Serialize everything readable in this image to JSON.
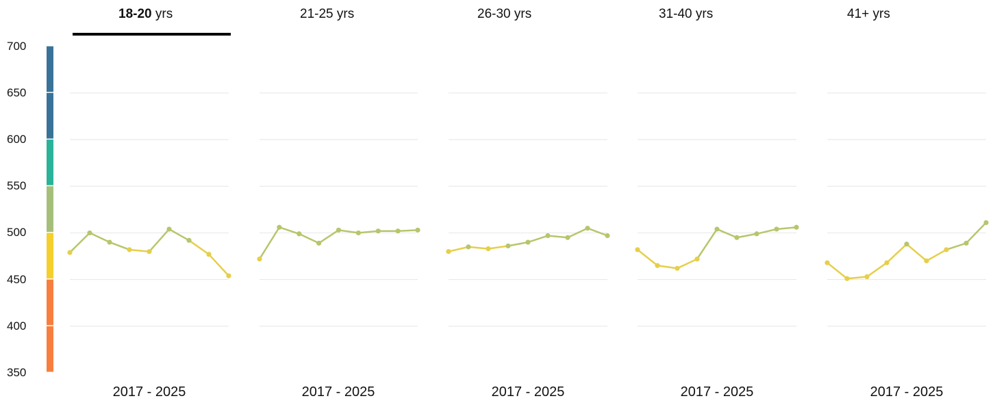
{
  "tabs": [
    {
      "label": "18-20",
      "unit": "yrs",
      "active": true
    },
    {
      "label": "21-25",
      "unit": "yrs",
      "active": false
    },
    {
      "label": "26-30",
      "unit": "yrs",
      "active": false
    },
    {
      "label": "31-40",
      "unit": "yrs",
      "active": false
    },
    {
      "label": "41+",
      "unit": "yrs",
      "active": false
    }
  ],
  "period_label": "2017 - 2025",
  "chart_data": {
    "type": "line",
    "ylim": [
      350,
      710
    ],
    "yticks": [
      700,
      650,
      600,
      550,
      500,
      450,
      400,
      350
    ],
    "gridlines": [
      650,
      600,
      550,
      500,
      450,
      400
    ],
    "grid": true,
    "x": [
      2017,
      2018,
      2019,
      2020,
      2021,
      2022,
      2023,
      2024,
      2025
    ],
    "panels": [
      {
        "label": "18-20 yrs",
        "values": [
          479,
          500,
          490,
          482,
          480,
          504,
          492,
          477,
          454
        ]
      },
      {
        "label": "21-25 yrs",
        "values": [
          472,
          506,
          499,
          489,
          503,
          500,
          502,
          502,
          503
        ]
      },
      {
        "label": "26-30 yrs",
        "values": [
          480,
          485,
          483,
          486,
          490,
          497,
          495,
          505,
          497
        ]
      },
      {
        "label": "31-40 yrs",
        "values": [
          482,
          465,
          462,
          472,
          504,
          495,
          499,
          504,
          506
        ]
      },
      {
        "label": "41+ yrs",
        "values": [
          468,
          451,
          453,
          468,
          488,
          470,
          482,
          489,
          511
        ]
      }
    ],
    "color_scale": [
      {
        "from": 650,
        "to": 700,
        "color": "#3a7398"
      },
      {
        "from": 600,
        "to": 650,
        "color": "#3a7398"
      },
      {
        "from": 550,
        "to": 600,
        "color": "#2bb39a"
      },
      {
        "from": 500,
        "to": 550,
        "color": "#a5bf7a"
      },
      {
        "from": 450,
        "to": 500,
        "color": "#f4cf2e"
      },
      {
        "from": 400,
        "to": 450,
        "color": "#f77e3e"
      },
      {
        "from": 350,
        "to": 400,
        "color": "#f77e3e"
      }
    ],
    "line_colors": {
      "high": "#b6c66c",
      "low": "#e6cf4a"
    },
    "gridline_color": "#e6e6e6"
  }
}
